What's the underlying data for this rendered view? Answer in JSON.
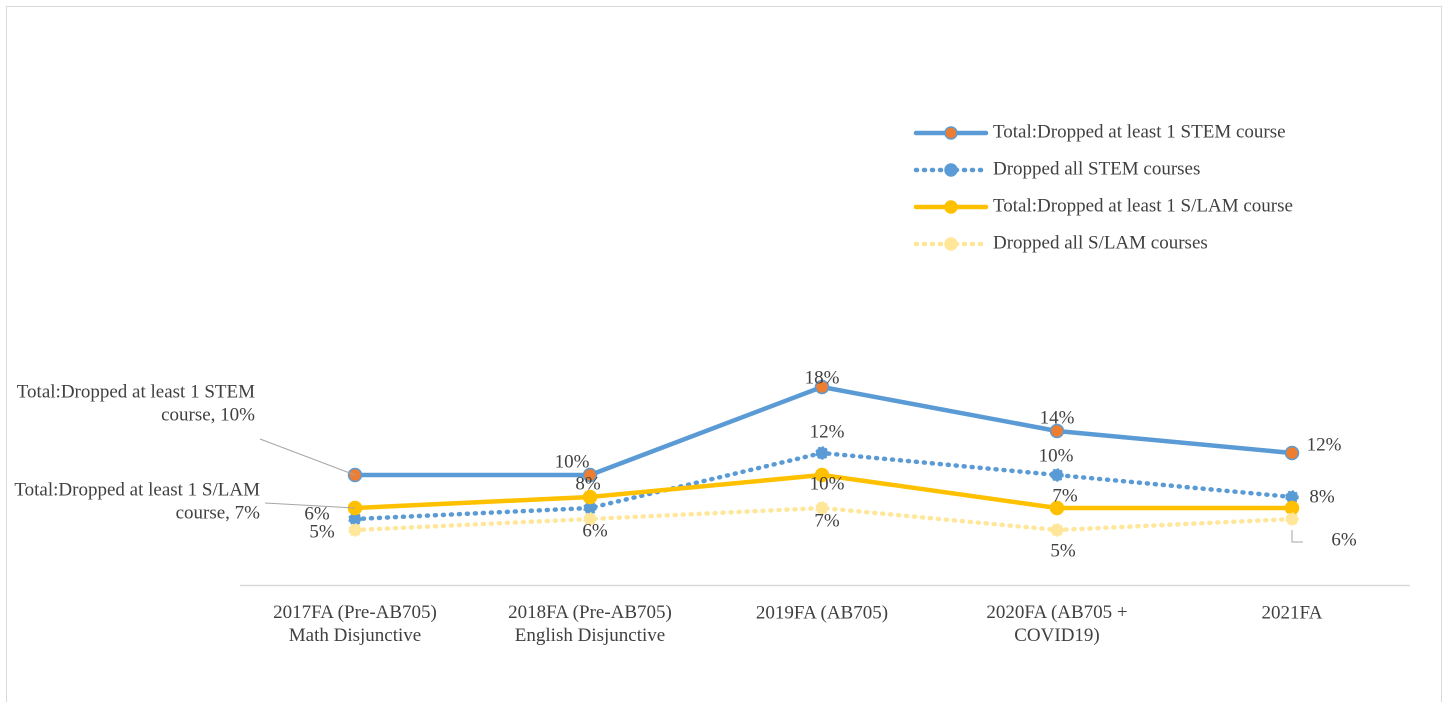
{
  "chart_data": {
    "type": "line",
    "categories": [
      "2017FA (Pre-AB705)\nMath Disjunctive",
      "2018FA (Pre-AB705)\nEnglish Disjunctive",
      "2019FA (AB705)",
      "2020FA (AB705 +\nCOVID19)",
      "2021FA"
    ],
    "series": [
      {
        "name": "Total:Dropped at least 1 STEM course",
        "color": "#5b9bd5",
        "marker_color": "#ed7d31",
        "dash": "solid",
        "values": [
          10,
          10,
          18,
          14,
          12
        ],
        "value_labels": [
          "Total:Dropped at least 1 STEM\ncourse, 10%",
          "10%",
          "18%",
          "14%",
          "12%"
        ]
      },
      {
        "name": "Dropped all STEM courses",
        "color": "#5b9bd5",
        "marker_color": "#5b9bd5",
        "dash": "dotted",
        "values": [
          6,
          7,
          12,
          10,
          8
        ],
        "value_labels": [
          "6%",
          null,
          "12%",
          "10%",
          "8%"
        ]
      },
      {
        "name": "Total:Dropped at least 1 S/LAM course",
        "color": "#ffc000",
        "marker_color": "#ffc000",
        "dash": "solid",
        "values": [
          7,
          8,
          10,
          7,
          7
        ],
        "value_labels": [
          "Total:Dropped at least 1 S/LAM\ncourse, 7%",
          "8%",
          "10%",
          "7%",
          null
        ]
      },
      {
        "name": "Dropped all S/LAM courses",
        "color": "#ffe699",
        "marker_color": "#ffe699",
        "dash": "dotted",
        "values": [
          5,
          6,
          7,
          5,
          6
        ],
        "value_labels": [
          "5%",
          "6%",
          "7%",
          "5%",
          "6%"
        ]
      }
    ],
    "ylim": [
      0,
      20
    ],
    "grid": false,
    "legend": "top-right"
  }
}
